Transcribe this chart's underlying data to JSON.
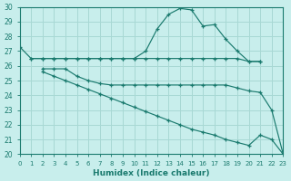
{
  "background_color": "#c8eeec",
  "grid_color": "#a8d8d4",
  "line_color": "#1a7a6e",
  "marker": "+",
  "xlabel": "Humidex (Indice chaleur)",
  "ylim": [
    20,
    30
  ],
  "xlim": [
    0,
    23
  ],
  "yticks": [
    20,
    21,
    22,
    23,
    24,
    25,
    26,
    27,
    28,
    29,
    30
  ],
  "xticks": [
    0,
    1,
    2,
    3,
    4,
    5,
    6,
    7,
    8,
    9,
    10,
    11,
    12,
    13,
    14,
    15,
    16,
    17,
    18,
    19,
    20,
    21,
    22,
    23
  ],
  "lines": [
    {
      "x": [
        0,
        1,
        2,
        3,
        4,
        5,
        6,
        7,
        8,
        9,
        10,
        11,
        12,
        13,
        14,
        15,
        16,
        17,
        18,
        19,
        20,
        21
      ],
      "y": [
        27.3,
        26.5,
        26.5,
        26.5,
        26.5,
        26.5,
        26.5,
        26.5,
        26.5,
        26.5,
        26.5,
        27.0,
        28.5,
        29.5,
        29.9,
        29.8,
        28.7,
        28.8,
        27.8,
        27.0,
        26.3,
        26.3
      ]
    },
    {
      "x": [
        1,
        2,
        3,
        4,
        5,
        6,
        7,
        8,
        9,
        10,
        11,
        12,
        13,
        14,
        15,
        16,
        17,
        18,
        19,
        20,
        21
      ],
      "y": [
        26.5,
        26.5,
        26.5,
        26.5,
        26.5,
        26.5,
        26.5,
        26.5,
        26.5,
        26.5,
        26.5,
        26.5,
        26.5,
        26.5,
        26.5,
        26.5,
        26.5,
        26.5,
        26.5,
        26.3,
        26.3
      ]
    },
    {
      "x": [
        2,
        3,
        4,
        5,
        6,
        7,
        8,
        9,
        10,
        11,
        12,
        13,
        14,
        15,
        16,
        17,
        18,
        19,
        20,
        21,
        22,
        23
      ],
      "y": [
        25.8,
        25.8,
        25.8,
        25.3,
        25.0,
        24.8,
        24.7,
        24.7,
        24.7,
        24.7,
        24.7,
        24.7,
        24.7,
        24.7,
        24.7,
        24.7,
        24.7,
        24.5,
        24.3,
        24.2,
        23.0,
        20.0
      ]
    },
    {
      "x": [
        2,
        3,
        4,
        5,
        6,
        7,
        8,
        9,
        10,
        11,
        12,
        13,
        14,
        15,
        16,
        17,
        18,
        19,
        20,
        21,
        22,
        23
      ],
      "y": [
        25.6,
        25.3,
        25.0,
        24.7,
        24.4,
        24.1,
        23.8,
        23.5,
        23.2,
        22.9,
        22.6,
        22.3,
        22.0,
        21.7,
        21.5,
        21.3,
        21.0,
        20.8,
        20.6,
        21.3,
        21.0,
        20.0
      ]
    }
  ]
}
